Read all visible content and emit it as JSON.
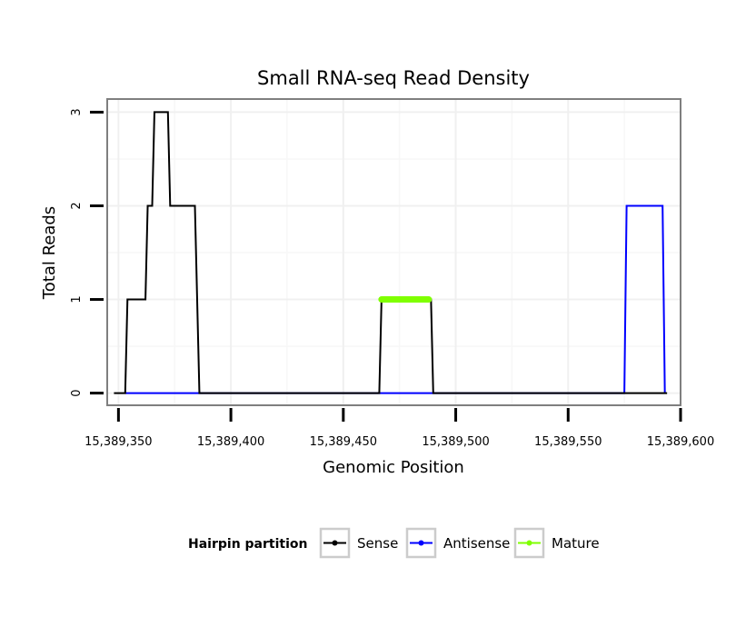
{
  "chart_data": {
    "type": "line",
    "title": "Small RNA-seq Read Density",
    "xlabel": "Genomic Position",
    "ylabel": "Total Reads",
    "xlim": [
      15389345,
      15389600
    ],
    "ylim": [
      -0.13,
      3.14
    ],
    "x_ticks": [
      15389350,
      15389400,
      15389450,
      15389500,
      15389550,
      15389600
    ],
    "x_tick_labels": [
      "15,389,350",
      "15,389,400",
      "15,389,450",
      "15,389,500",
      "15,389,550",
      "15,389,600"
    ],
    "y_ticks": [
      0,
      1,
      2,
      3
    ],
    "y_tick_labels": [
      "0",
      "1",
      "2",
      "3"
    ],
    "grid": true,
    "legend": {
      "title": "Hairpin partition",
      "position": "bottom",
      "entries": [
        "Sense",
        "Antisense",
        "Mature"
      ]
    },
    "series": [
      {
        "name": "Sense",
        "color": "#000000",
        "x": [
          15389348,
          15389353,
          15389354,
          15389362,
          15389363,
          15389365,
          15389366,
          15389372,
          15389373,
          15389384,
          15389386,
          15389466,
          15389467,
          15389489,
          15389490,
          15389594
        ],
        "y": [
          0,
          0,
          1,
          1,
          2,
          2,
          3,
          3,
          2,
          2,
          0,
          0,
          1,
          1,
          0,
          0
        ]
      },
      {
        "name": "Antisense",
        "color": "#0000ff",
        "x": [
          15389353,
          15389575,
          15389576,
          15389592,
          15389593
        ],
        "y": [
          0,
          0,
          2,
          2,
          0
        ]
      },
      {
        "name": "Mature",
        "color": "#7fff00",
        "x": [
          15389467,
          15389488
        ],
        "y": [
          1,
          1
        ]
      }
    ]
  }
}
